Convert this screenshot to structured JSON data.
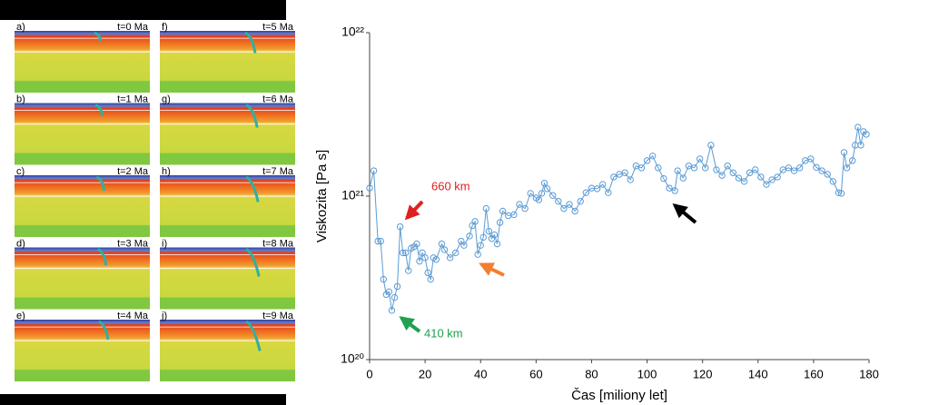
{
  "panels": [
    {
      "label": "a)",
      "time": "t=0 Ma"
    },
    {
      "label": "b)",
      "time": "t=1 Ma"
    },
    {
      "label": "c)",
      "time": "t=2 Ma"
    },
    {
      "label": "d)",
      "time": "t=3 Ma"
    },
    {
      "label": "e)",
      "time": "t=4 Ma"
    },
    {
      "label": "f)",
      "time": "t=5 Ma"
    },
    {
      "label": "g)",
      "time": "t=6 Ma"
    },
    {
      "label": "h)",
      "time": "t=7 Ma"
    },
    {
      "label": "i)",
      "time": "t=8 Ma"
    },
    {
      "label": "j)",
      "time": "t=9 Ma"
    }
  ],
  "chart_data": {
    "type": "line",
    "xlabel": "Čas [miliony let]",
    "ylabel": "Viskozita [Pa s]",
    "log_y": true,
    "xlim": [
      0,
      180
    ],
    "xticks": [
      0,
      20,
      40,
      60,
      80,
      100,
      120,
      140,
      160,
      180
    ],
    "ylim": [
      1e+20,
      1e+22
    ],
    "yticks": [
      {
        "value": 1e+20,
        "label": "10²⁰"
      },
      {
        "value": 1e+21,
        "label": "10²¹"
      },
      {
        "value": 1e+22,
        "label": "10²²"
      }
    ],
    "annotations": [
      {
        "text": "660 km",
        "color": "#e02020"
      },
      {
        "text": "410 km",
        "color": "#20a050"
      }
    ],
    "series": [
      {
        "name": "Viskozita",
        "color": "#5b9bd5",
        "x": [
          0,
          1.5,
          3,
          4,
          5,
          6,
          7,
          8,
          9,
          10,
          11,
          12,
          13,
          14,
          15,
          16,
          17,
          18,
          19,
          20,
          21,
          22,
          23,
          24,
          26,
          27,
          29,
          31,
          33,
          34,
          36,
          37,
          38,
          39,
          40,
          41,
          42,
          43,
          44,
          45,
          46,
          47,
          48,
          50,
          52,
          54,
          56,
          58,
          60,
          61,
          62,
          63,
          64,
          66,
          68,
          70,
          72,
          74,
          76,
          78,
          80,
          82,
          84,
          86,
          88,
          90,
          92,
          94,
          96,
          98,
          100,
          102,
          104,
          106,
          108,
          110,
          111,
          113,
          115,
          117,
          119,
          121,
          123,
          125,
          127,
          129,
          131,
          133,
          135,
          137,
          139,
          141,
          143,
          145,
          147,
          149,
          151,
          153,
          155,
          157,
          159,
          161,
          163,
          165,
          167,
          169,
          170,
          171,
          172,
          174,
          175,
          176,
          177,
          178,
          179
        ],
        "values": [
          1.12e+21,
          1.43e+21,
          5.3e+20,
          5.3e+20,
          3.1e+20,
          2.5e+20,
          2.6e+20,
          2e+20,
          2.4e+20,
          2.8e+20,
          6.5e+20,
          4.5e+20,
          4.5e+20,
          3.5e+20,
          4.8e+20,
          4.9e+20,
          5.1e+20,
          4e+20,
          4.5e+20,
          4.2e+20,
          3.4e+20,
          3.1e+20,
          4.2e+20,
          4.1e+20,
          5.1e+20,
          4.7e+20,
          4.2e+20,
          4.5e+20,
          5.3e+20,
          5e+20,
          5.7e+20,
          6.6e+20,
          7e+20,
          4.4e+20,
          5e+20,
          5.6e+20,
          8.4e+20,
          6.1e+20,
          5.5e+20,
          5.8e+20,
          5.1e+20,
          6.9e+20,
          8.1e+20,
          7.6e+20,
          7.7e+20,
          8.9e+20,
          8.4e+20,
          1.04e+21,
          9.75e+20,
          9.5e+20,
          1.04e+21,
          1.2e+21,
          1.11e+21,
          1.01e+21,
          9.3e+20,
          8.4e+20,
          8.9e+20,
          8.1e+20,
          9.3e+20,
          1.05e+21,
          1.12e+21,
          1.11e+21,
          1.18e+21,
          1.05e+21,
          1.31e+21,
          1.36e+21,
          1.39e+21,
          1.26e+21,
          1.53e+21,
          1.49e+21,
          1.65e+21,
          1.76e+21,
          1.49e+21,
          1.28e+21,
          1.12e+21,
          1.08e+21,
          1.43e+21,
          1.29e+21,
          1.53e+21,
          1.49e+21,
          1.69e+21,
          1.49e+21,
          2.05e+21,
          1.45e+21,
          1.34e+21,
          1.53e+21,
          1.39e+21,
          1.29e+21,
          1.23e+21,
          1.39e+21,
          1.45e+21,
          1.31e+21,
          1.18e+21,
          1.26e+21,
          1.31e+21,
          1.45e+21,
          1.49e+21,
          1.43e+21,
          1.49e+21,
          1.65e+21,
          1.69e+21,
          1.5e+21,
          1.43e+21,
          1.36e+21,
          1.23e+21,
          1.05e+21,
          1.04e+21,
          1.85e+21,
          1.49e+21,
          1.65e+21,
          2.05e+21,
          2.64e+21,
          2.05e+21,
          2.48e+21,
          2.39e+21
        ]
      }
    ]
  }
}
